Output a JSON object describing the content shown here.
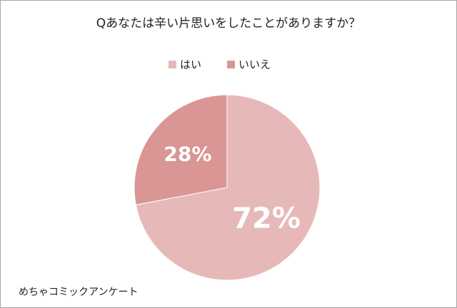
{
  "chart_data": {
    "type": "pie",
    "title": "Qあなたは辛い片思いをしたことがありますか？",
    "categories": [
      "はい",
      "いいえ"
    ],
    "values": [
      72,
      28
    ],
    "value_labels": [
      "72%",
      "28%"
    ],
    "colors": [
      "#e6b9b8",
      "#d99694"
    ],
    "legend": "top",
    "note": "めちゃコミックアンケート"
  }
}
